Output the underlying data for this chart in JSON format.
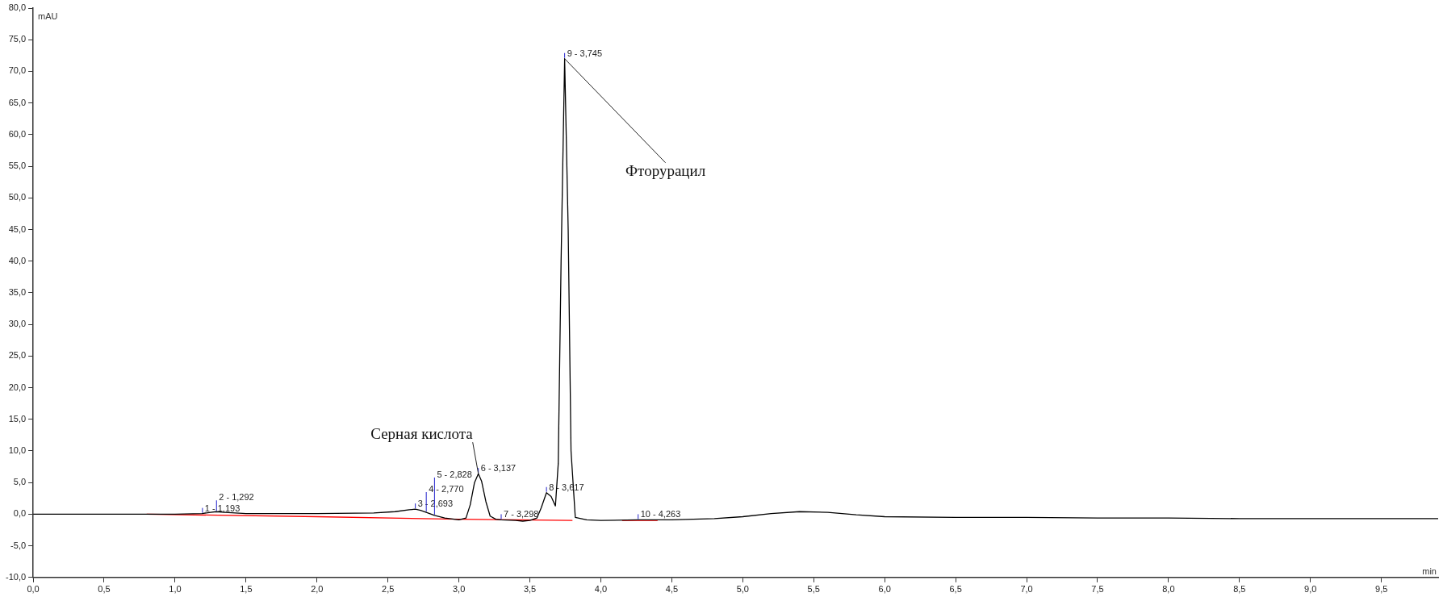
{
  "chart_data": {
    "type": "line",
    "xlabel": "min",
    "ylabel": "mAU",
    "grid": false,
    "legend": false,
    "marker": "none",
    "line_style": "solid",
    "xlim": [
      0,
      9.9
    ],
    "xticks": [
      {
        "value": 0,
        "label": "0,0"
      },
      {
        "value": 0.5,
        "label": "0,5"
      },
      {
        "value": 1,
        "label": "1,0"
      },
      {
        "value": 1.5,
        "label": "1,5"
      },
      {
        "value": 2,
        "label": "2,0"
      },
      {
        "value": 2.5,
        "label": "2,5"
      },
      {
        "value": 3,
        "label": "3,0"
      },
      {
        "value": 3.5,
        "label": "3,5"
      },
      {
        "value": 4,
        "label": "4,0"
      },
      {
        "value": 4.5,
        "label": "4,5"
      },
      {
        "value": 5,
        "label": "5,0"
      },
      {
        "value": 5.5,
        "label": "5,5"
      },
      {
        "value": 6,
        "label": "6,0"
      },
      {
        "value": 6.5,
        "label": "6,5"
      },
      {
        "value": 7,
        "label": "7,0"
      },
      {
        "value": 7.5,
        "label": "7,5"
      },
      {
        "value": 8,
        "label": "8,0"
      },
      {
        "value": 8.5,
        "label": "8,5"
      },
      {
        "value": 9,
        "label": "9,0"
      },
      {
        "value": 9.5,
        "label": "9,5"
      }
    ],
    "ylim": [
      -10,
      80
    ],
    "yticks": [
      {
        "value": -10,
        "label": "-10,0"
      },
      {
        "value": -5,
        "label": "-5,0"
      },
      {
        "value": 0,
        "label": "0,0"
      },
      {
        "value": 5,
        "label": "5,0"
      },
      {
        "value": 10,
        "label": "10,0"
      },
      {
        "value": 15,
        "label": "15,0"
      },
      {
        "value": 20,
        "label": "20,0"
      },
      {
        "value": 25,
        "label": "25,0"
      },
      {
        "value": 30,
        "label": "30,0"
      },
      {
        "value": 35,
        "label": "35,0"
      },
      {
        "value": 40,
        "label": "40,0"
      },
      {
        "value": 45,
        "label": "45,0"
      },
      {
        "value": 50,
        "label": "50,0"
      },
      {
        "value": 55,
        "label": "55,0"
      },
      {
        "value": 60,
        "label": "60,0"
      },
      {
        "value": 65,
        "label": "65,0"
      },
      {
        "value": 70,
        "label": "70,0"
      },
      {
        "value": 75,
        "label": "75,0"
      },
      {
        "value": 80,
        "label": "80,0"
      }
    ],
    "series": [
      {
        "color": "#000000",
        "x": [
          0,
          0.5,
          0.8,
          1.0,
          1.19,
          1.25,
          1.29,
          1.35,
          1.5,
          2.0,
          2.4,
          2.55,
          2.65,
          2.693,
          2.73,
          2.77,
          2.828,
          2.9,
          3.0,
          3.05,
          3.08,
          3.11,
          3.137,
          3.16,
          3.19,
          3.22,
          3.26,
          3.298,
          3.4,
          3.45,
          3.5,
          3.55,
          3.58,
          3.617,
          3.65,
          3.68,
          3.7,
          3.72,
          3.745,
          3.77,
          3.79,
          3.82,
          3.9,
          4.0,
          4.263,
          4.5,
          4.8,
          5.0,
          5.2,
          5.4,
          5.6,
          5.8,
          6.0,
          6.5,
          7.0,
          7.5,
          8.0,
          8.5,
          9.0,
          9.5,
          9.9
        ],
        "values": [
          0,
          0,
          0,
          0,
          0.1,
          0.3,
          0.4,
          0.3,
          0.1,
          0.1,
          0.2,
          0.4,
          0.7,
          0.8,
          0.6,
          0.3,
          -0.2,
          -0.6,
          -0.9,
          -0.6,
          1.5,
          5.0,
          6.4,
          5.2,
          2.0,
          -0.3,
          -0.8,
          -0.9,
          -1.0,
          -1.1,
          -1.0,
          -0.6,
          1.0,
          3.4,
          2.8,
          1.3,
          8,
          40,
          72,
          45,
          10,
          -0.5,
          -0.9,
          -1.0,
          -0.9,
          -0.9,
          -0.7,
          -0.4,
          0.1,
          0.4,
          0.3,
          -0.1,
          -0.4,
          -0.5,
          -0.5,
          -0.6,
          -0.6,
          -0.7,
          -0.7,
          -0.7,
          -0.7
        ]
      },
      {
        "color": "#ff0000",
        "x": [
          0.8,
          2.0,
          3.0,
          3.8,
          3.81,
          4.15,
          4.4
        ],
        "values": [
          0,
          -0.4,
          -0.8,
          -1.0,
          null,
          -1.0,
          -1.0
        ]
      }
    ],
    "annotations": [
      {
        "text": "1 - 1,193",
        "x": 1.193,
        "y": 0.1
      },
      {
        "text": "2 - 1,292",
        "x": 1.292,
        "y": 0.4
      },
      {
        "text": "3 - 2,693",
        "x": 2.693,
        "y": 0.8
      },
      {
        "text": "4 - 2,770",
        "x": 2.77,
        "y": 0.3
      },
      {
        "text": "5 - 2,828",
        "x": 2.828,
        "y": -0.2
      },
      {
        "text": "6 - 3,137",
        "x": 3.137,
        "y": 6.4
      },
      {
        "text": "7 - 3,298",
        "x": 3.298,
        "y": -0.9
      },
      {
        "text": "8 - 3,617",
        "x": 3.617,
        "y": 3.4
      },
      {
        "text": "9 - 3,745",
        "x": 3.745,
        "y": 72
      },
      {
        "text": "10 - 4,263",
        "x": 4.263,
        "y": -0.9
      },
      {
        "text": "Серная кислота",
        "x": 3.137,
        "y": 6.4
      },
      {
        "text": "Фторурацил",
        "x": 3.745,
        "y": 72
      }
    ]
  }
}
